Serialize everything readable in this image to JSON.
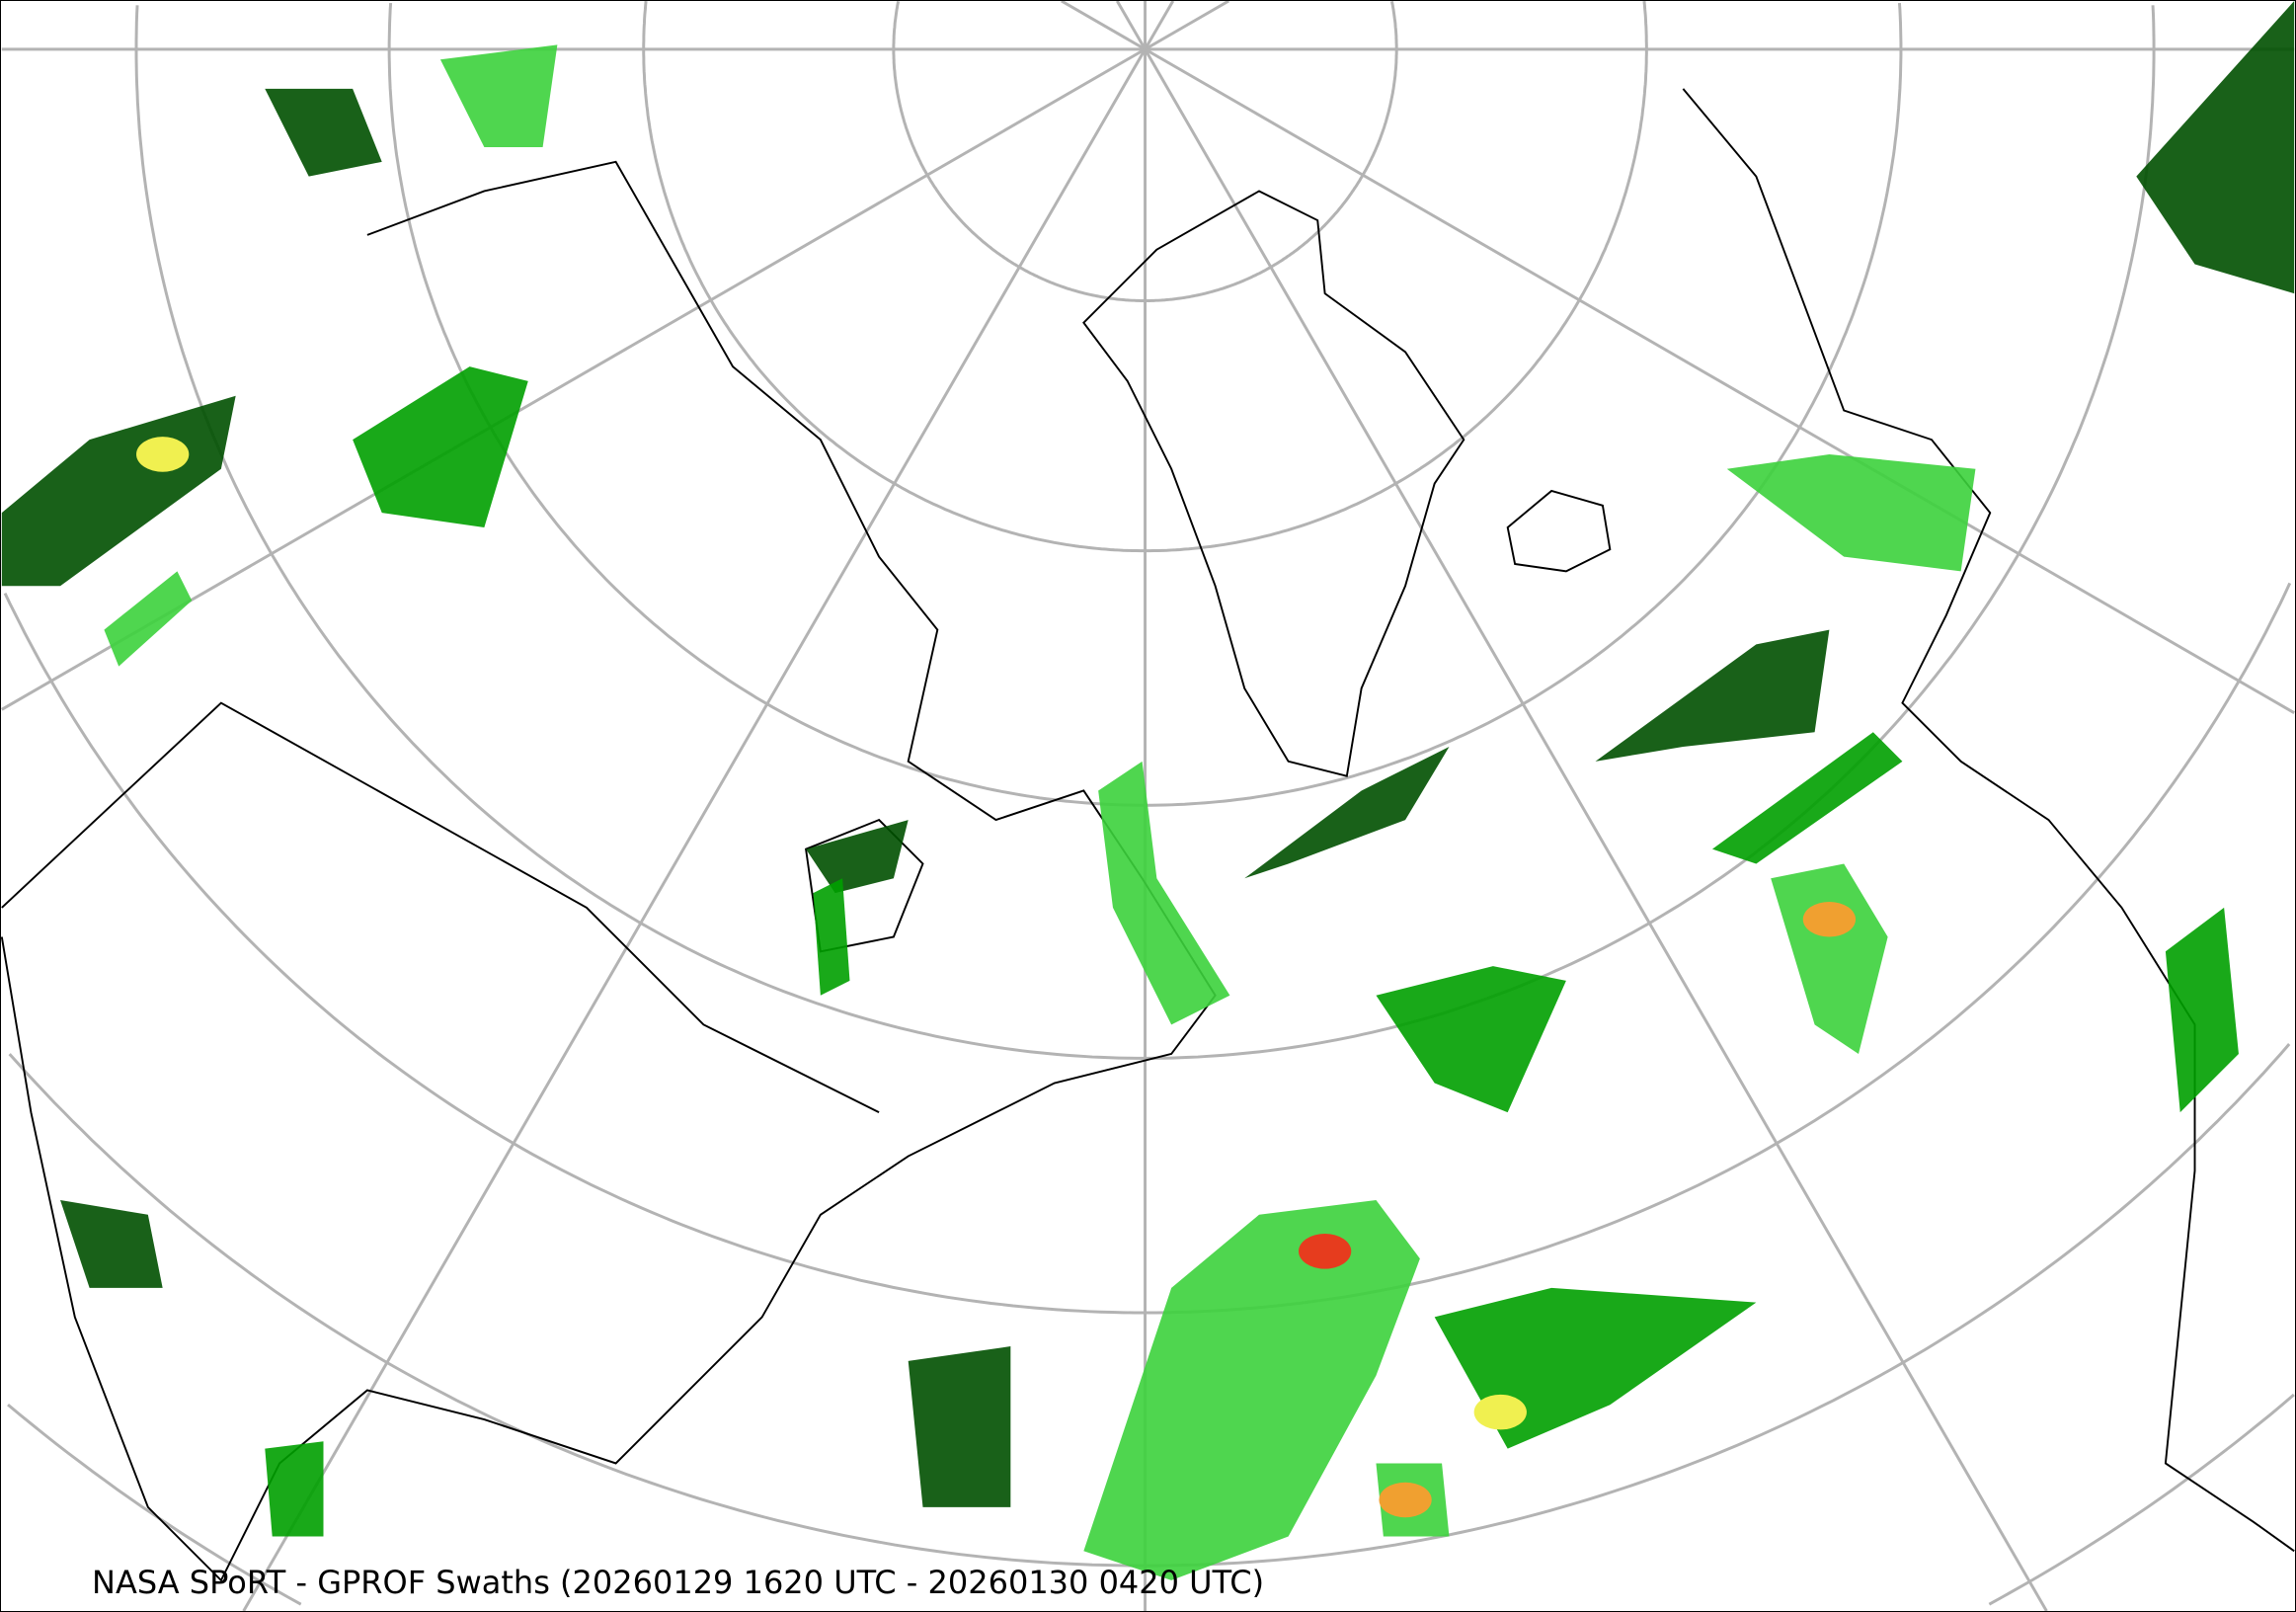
{
  "map": {
    "caption": "NASA SPoRT - GPROF Swaths (20260129 1620 UTC - 20260130 0420 UTC)",
    "projection": "north polar stereographic",
    "graticule_color": "#b3b3b3",
    "coastline_color": "#000000",
    "precip_colors": [
      "#005000",
      "#00a000",
      "#3cd23c",
      "#a0e650",
      "#f0f050",
      "#f0a030",
      "#e63c1e",
      "#c80000"
    ]
  }
}
